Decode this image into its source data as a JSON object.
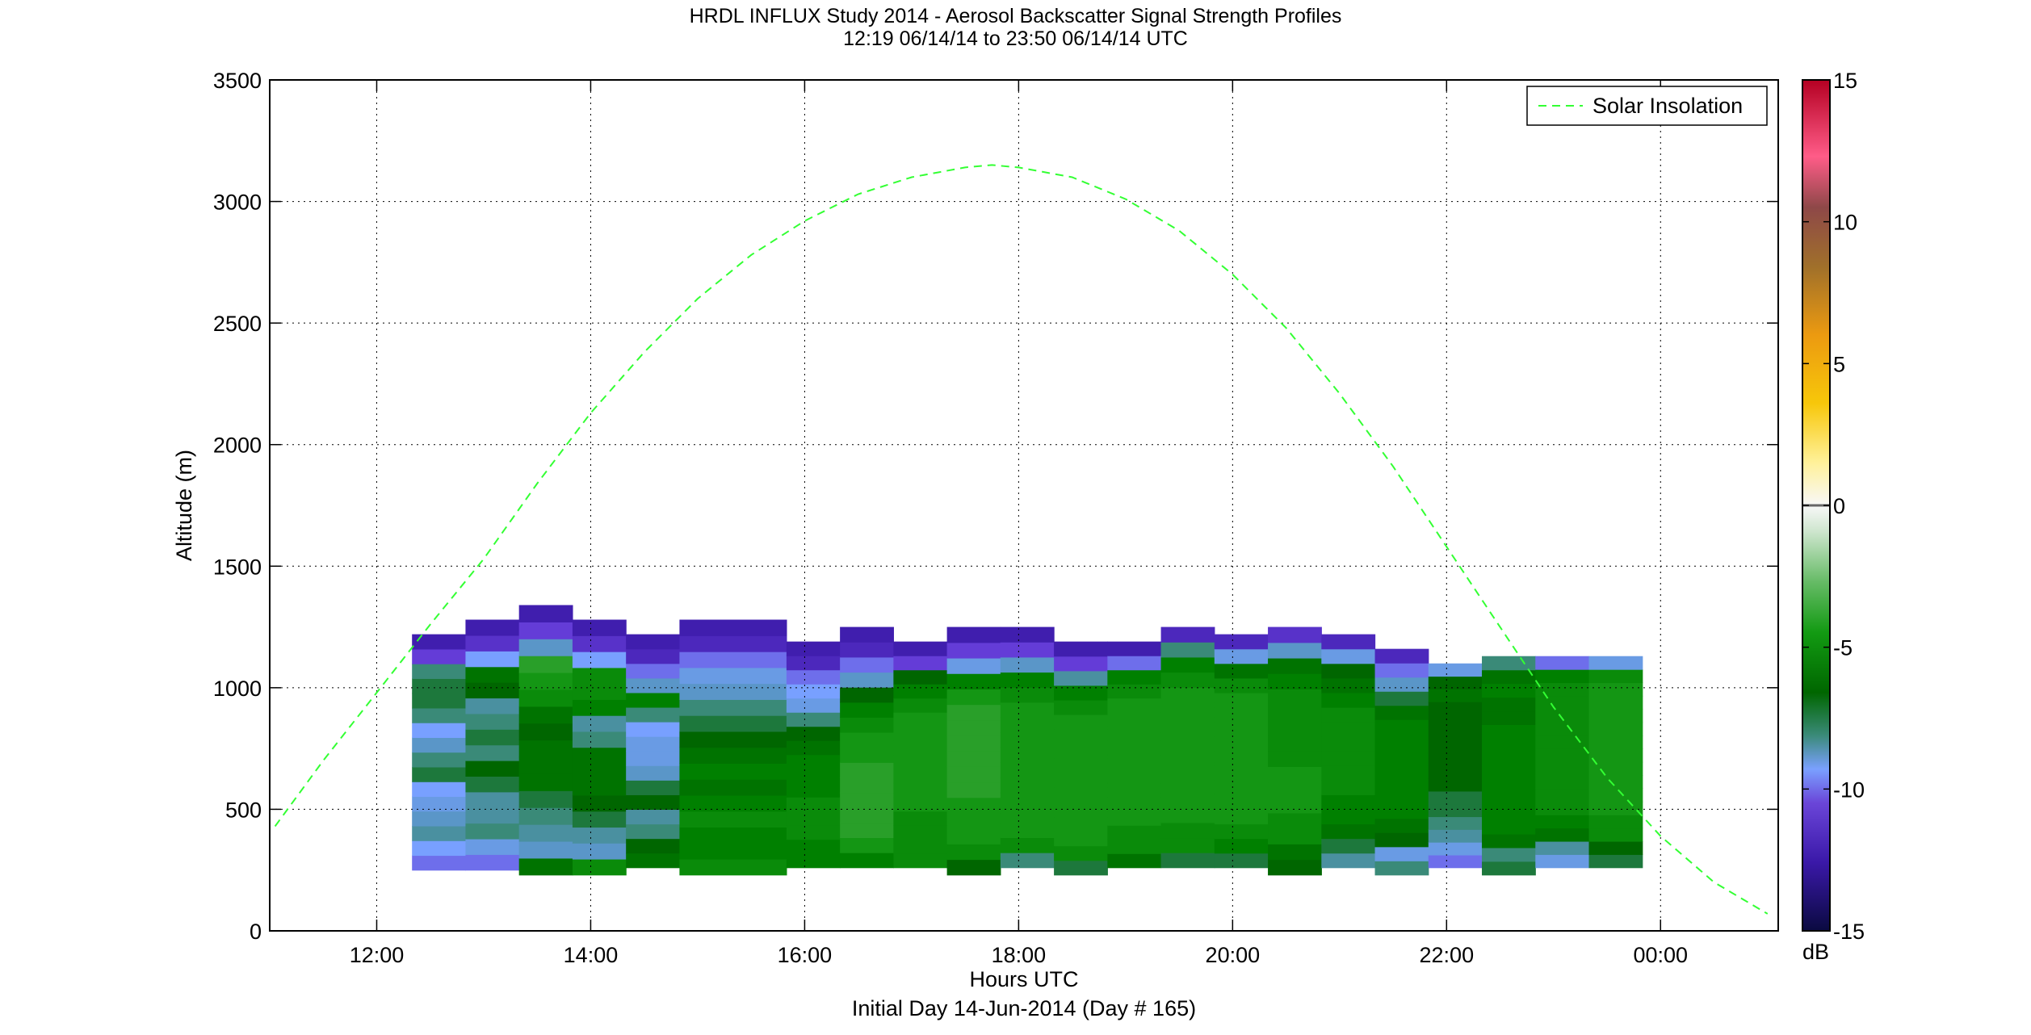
{
  "title": {
    "line1": "HRDL INFLUX Study 2014 - Aerosol Backscatter Signal Strength Profiles",
    "line2": "12:19 06/14/14 to 23:50 06/14/14  UTC"
  },
  "chart_data": {
    "type": "heatmap",
    "xlabel": "Hours UTC",
    "xlabel2": "Initial Day 14-Jun-2014 (Day # 165)",
    "ylabel": "Altitude (m)",
    "xlim": [
      11.0,
      25.1
    ],
    "ylim": [
      0,
      3500
    ],
    "x_ticks": [
      {
        "value": 12,
        "label": "12:00"
      },
      {
        "value": 14,
        "label": "14:00"
      },
      {
        "value": 16,
        "label": "16:00"
      },
      {
        "value": 18,
        "label": "18:00"
      },
      {
        "value": 20,
        "label": "20:00"
      },
      {
        "value": 22,
        "label": "22:00"
      },
      {
        "value": 24,
        "label": "00:00"
      }
    ],
    "y_ticks": [
      0,
      500,
      1000,
      1500,
      2000,
      2500,
      3000,
      3500
    ],
    "grid": true,
    "legend": {
      "position": "top-right",
      "entries": [
        "Solar Insolation"
      ]
    },
    "colorbar": {
      "label": "dB",
      "range": [
        -15,
        15
      ],
      "ticks": [
        -15,
        -10,
        -5,
        0,
        5,
        10,
        15
      ]
    },
    "solar_insolation": {
      "color": "#33ff33",
      "style": "dashed",
      "x": [
        11.05,
        11.5,
        12.0,
        12.5,
        13.0,
        13.5,
        14.0,
        14.5,
        15.0,
        15.5,
        16.0,
        16.5,
        17.0,
        17.5,
        17.75,
        18.0,
        18.5,
        19.0,
        19.5,
        20.0,
        20.5,
        21.0,
        21.5,
        22.0,
        22.5,
        23.0,
        23.5,
        24.0,
        24.5,
        25.0
      ],
      "y": [
        430,
        700,
        980,
        1260,
        1530,
        1840,
        2130,
        2380,
        2600,
        2780,
        2920,
        3030,
        3100,
        3140,
        3150,
        3140,
        3100,
        3010,
        2880,
        2700,
        2480,
        2210,
        1910,
        1580,
        1250,
        920,
        630,
        390,
        200,
        70
      ]
    },
    "profiles": [
      {
        "t0": 12.33,
        "t1": 12.83,
        "base": 250,
        "top": 1220,
        "values": [
          -10.5,
          -10,
          -8.5,
          -9,
          -9.5,
          -10,
          -7.5,
          -8,
          -9,
          -10,
          -8,
          -7.5,
          -7.5,
          -8,
          -11,
          -12.5
        ]
      },
      {
        "t0": 12.83,
        "t1": 13.33,
        "base": 250,
        "top": 1280,
        "values": [
          -10.5,
          -9.5,
          -8,
          -8.5,
          -8.5,
          -7.5,
          -7,
          -8,
          -7.5,
          -8,
          -8.5,
          -7,
          -6.5,
          -10,
          -11.5,
          -12.5
        ]
      },
      {
        "t0": 13.33,
        "t1": 13.83,
        "base": 230,
        "top": 1340,
        "values": [
          -6.5,
          -9,
          -8.5,
          -8,
          -7.5,
          -6.5,
          -6.5,
          -6.5,
          -7,
          -6.5,
          -5.5,
          -5,
          -4.5,
          -9,
          -11,
          -12.5
        ]
      },
      {
        "t0": 13.83,
        "t1": 14.33,
        "base": 230,
        "top": 1280,
        "values": [
          -5.5,
          -9,
          -8.5,
          -7.5,
          -7,
          -6.5,
          -6.5,
          -6.5,
          -8,
          -8.5,
          -6,
          -5.5,
          -5.5,
          -10,
          -11.5,
          -12.5
        ]
      },
      {
        "t0": 14.33,
        "t1": 14.83,
        "base": 260,
        "top": 1220,
        "values": [
          -6.5,
          -7,
          -8,
          -8.5,
          -7,
          -7.5,
          -9,
          -9.5,
          -9.5,
          -10,
          -8,
          -6,
          -9,
          -10.5,
          -12,
          -12.5
        ]
      },
      {
        "t0": 14.83,
        "t1": 15.83,
        "base": 230,
        "top": 1280,
        "values": [
          -5.5,
          -6,
          -6,
          -5.5,
          -6,
          -6.5,
          -6,
          -6.5,
          -7,
          -7.5,
          -8,
          -9,
          -9.5,
          -10.5,
          -12,
          -12.5
        ]
      },
      {
        "t0": 15.83,
        "t1": 16.33,
        "base": 260,
        "top": 1190,
        "values": [
          -6,
          -6,
          -5.5,
          -5.5,
          -5.5,
          -6,
          -6,
          -6,
          -6.5,
          -7,
          -8,
          -9.5,
          -10,
          -10.5,
          -12,
          -12.5
        ]
      },
      {
        "t0": 16.33,
        "t1": 16.83,
        "base": 260,
        "top": 1250,
        "values": [
          -6,
          -5,
          -4.5,
          -4.5,
          -4.5,
          -4.5,
          -4.5,
          -5,
          -5,
          -5.5,
          -6,
          -7,
          -9,
          -10.5,
          -12,
          -12.5
        ]
      },
      {
        "t0": 16.83,
        "t1": 17.33,
        "base": 260,
        "top": 1190,
        "values": [
          -5.5,
          -5.5,
          -5.5,
          -5.5,
          -5,
          -5,
          -5,
          -5,
          -5,
          -5,
          -5,
          -5.5,
          -6,
          -7,
          -11,
          -12.5
        ]
      },
      {
        "t0": 17.33,
        "t1": 17.83,
        "base": 230,
        "top": 1250,
        "values": [
          -7,
          -5.5,
          -5,
          -5,
          -5,
          -4.5,
          -4.5,
          -4.5,
          -4.5,
          -4.5,
          -4.5,
          -5,
          -6,
          -9.5,
          -11,
          -12.5
        ]
      },
      {
        "t0": 17.83,
        "t1": 18.33,
        "base": 260,
        "top": 1250,
        "values": [
          -8,
          -5.5,
          -5,
          -5,
          -5,
          -5,
          -5,
          -5,
          -5,
          -5,
          -5,
          -5.5,
          -6,
          -9,
          -11,
          -12.5
        ]
      },
      {
        "t0": 18.33,
        "t1": 18.83,
        "base": 230,
        "top": 1190,
        "values": [
          -7.5,
          -5.5,
          -5,
          -5,
          -5,
          -5,
          -5,
          -5,
          -5,
          -5,
          -5,
          -5.5,
          -6,
          -8.5,
          -11,
          -12.5
        ]
      },
      {
        "t0": 18.83,
        "t1": 19.33,
        "base": 260,
        "top": 1190,
        "values": [
          -6.5,
          -5.5,
          -5.5,
          -5,
          -5,
          -5,
          -5,
          -5,
          -5,
          -5,
          -5,
          -5,
          -5.5,
          -6,
          -10.5,
          -12.5
        ]
      },
      {
        "t0": 19.33,
        "t1": 19.83,
        "base": 260,
        "top": 1250,
        "values": [
          -7.5,
          -5.5,
          -5.5,
          -5,
          -5,
          -5,
          -5,
          -5,
          -5,
          -5,
          -5,
          -5,
          -5.5,
          -6,
          -8,
          -12
        ]
      },
      {
        "t0": 19.83,
        "t1": 20.33,
        "base": 260,
        "top": 1220,
        "values": [
          -7.5,
          -6,
          -5.5,
          -5,
          -5,
          -5,
          -5,
          -5,
          -5,
          -5,
          -5,
          -5,
          -5.5,
          -6.5,
          -9.5,
          -12
        ]
      },
      {
        "t0": 20.33,
        "t1": 20.83,
        "base": 230,
        "top": 1250,
        "values": [
          -7,
          -6.5,
          -5.5,
          -5.5,
          -5,
          -5,
          -5,
          -5.5,
          -5.5,
          -5.5,
          -5.5,
          -5.5,
          -6,
          -6.5,
          -9,
          -11.5
        ]
      },
      {
        "t0": 20.83,
        "t1": 21.33,
        "base": 260,
        "top": 1220,
        "values": [
          -8.5,
          -7.5,
          -6.5,
          -6,
          -6,
          -5.5,
          -5.5,
          -5.5,
          -5.5,
          -5.5,
          -5.5,
          -6,
          -6.5,
          -7,
          -9.5,
          -12
        ]
      },
      {
        "t0": 21.33,
        "t1": 21.83,
        "base": 230,
        "top": 1160,
        "values": [
          -8,
          -9.5,
          -7,
          -6.5,
          -6,
          -6,
          -6,
          -6,
          -6,
          -6,
          -6,
          -6.5,
          -7.5,
          -9,
          -10.5,
          -12
        ]
      },
      {
        "t0": 21.83,
        "t1": 22.33,
        "base": 260,
        "top": 1100,
        "values": [
          -10.5,
          -9.5,
          -8.5,
          -8,
          -7.5,
          -7.5,
          -7,
          -7,
          -7,
          -7,
          -7,
          -7,
          -7,
          -6.5,
          -7,
          -9.5
        ]
      },
      {
        "t0": 22.33,
        "t1": 22.83,
        "base": 230,
        "top": 1130,
        "values": [
          -7.5,
          -8,
          -6.5,
          -6,
          -6,
          -6,
          -6,
          -6,
          -6,
          -6,
          -6,
          -6.5,
          -6.5,
          -6,
          -6.5,
          -8
        ]
      },
      {
        "t0": 22.83,
        "t1": 23.33,
        "base": 260,
        "top": 1130,
        "values": [
          -9.5,
          -8.5,
          -6.5,
          -6,
          -5.5,
          -5.5,
          -5.5,
          -5.5,
          -5.5,
          -5.5,
          -5.5,
          -5.5,
          -5.5,
          -5.5,
          -6,
          -10.5
        ]
      },
      {
        "t0": 23.33,
        "t1": 23.83,
        "base": 260,
        "top": 1130,
        "values": [
          -7.5,
          -7,
          -5.5,
          -5.5,
          -5,
          -5,
          -5,
          -5,
          -5,
          -5,
          -5,
          -5,
          -5,
          -5,
          -5.5,
          -9.5
        ]
      }
    ]
  }
}
